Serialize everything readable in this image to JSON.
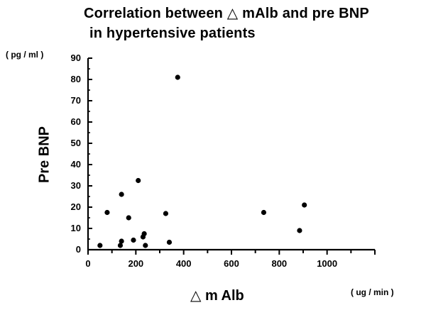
{
  "chart_data": {
    "type": "scatter",
    "title": [
      "Correlation between △ mAlb and pre BNP",
      "in hypertensive patients"
    ],
    "xlabel": "△ m Alb",
    "ylabel": "Pre BNP",
    "x_unit": "( ug / min )",
    "y_unit": "( pg / ml )",
    "xlim": [
      0,
      1200
    ],
    "ylim": [
      0,
      90
    ],
    "x_ticks": [
      "0",
      "200",
      "400",
      "600",
      "800",
      "1000"
    ],
    "y_ticks": [
      "0",
      "10",
      "20",
      "30",
      "40",
      "50",
      "60",
      "70",
      "80",
      "90"
    ],
    "grid": false,
    "points": [
      {
        "x": 50,
        "y": 2
      },
      {
        "x": 80,
        "y": 17.5
      },
      {
        "x": 135,
        "y": 2
      },
      {
        "x": 140,
        "y": 4
      },
      {
        "x": 140,
        "y": 26
      },
      {
        "x": 170,
        "y": 15
      },
      {
        "x": 190,
        "y": 4.5
      },
      {
        "x": 210,
        "y": 32.5
      },
      {
        "x": 230,
        "y": 6
      },
      {
        "x": 235,
        "y": 7.5
      },
      {
        "x": 240,
        "y": 2
      },
      {
        "x": 325,
        "y": 17
      },
      {
        "x": 340,
        "y": 3.5
      },
      {
        "x": 375,
        "y": 81
      },
      {
        "x": 735,
        "y": 17.5
      },
      {
        "x": 885,
        "y": 9
      },
      {
        "x": 905,
        "y": 21
      }
    ]
  }
}
